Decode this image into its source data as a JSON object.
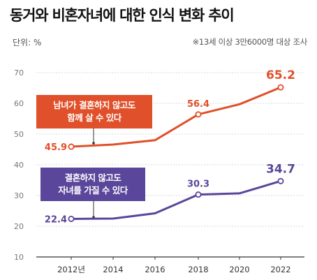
{
  "title": "동거와 비혼자녀에 대한 인식 변화 추이",
  "unit": "단위: %",
  "note": "※13세 이상 3만6000명 대상 조사",
  "colors": {
    "orange": "#e0502a",
    "purple": "#5a469a",
    "grid": "#cccccc",
    "axis": "#333333"
  },
  "annotations": {
    "orange_line1": "남녀가 결혼하지 않고도",
    "orange_line2": "함께 살 수 있다",
    "purple_line1": "결혼하지 않고도",
    "purple_line2": "자녀를 가질 수 있다"
  },
  "chart_data": {
    "type": "line",
    "title": "동거와 비혼자녀에 대한 인식 변화 추이",
    "xlabel": "",
    "ylabel": "",
    "x": [
      2012,
      2014,
      2016,
      2018,
      2020,
      2022
    ],
    "x_tick_labels": [
      "2012년",
      "2014",
      "2016",
      "2018",
      "2020",
      "2022"
    ],
    "ylim": [
      10,
      70
    ],
    "y_ticks": [
      10,
      20,
      30,
      40,
      50,
      60,
      70
    ],
    "grid": true,
    "series": [
      {
        "key": "cohabit",
        "color": "#e0502a",
        "values": [
          45.9,
          46.6,
          48.0,
          56.4,
          59.7,
          65.2
        ],
        "labels": [
          "45.9",
          "",
          "",
          "56.4",
          "",
          "65.2"
        ],
        "markers": [
          true,
          false,
          false,
          true,
          false,
          true
        ]
      },
      {
        "key": "children",
        "color": "#5a469a",
        "values": [
          22.4,
          22.5,
          24.2,
          30.3,
          30.7,
          34.7
        ],
        "labels": [
          "22.4",
          "",
          "",
          "30.3",
          "",
          "34.7"
        ],
        "markers": [
          true,
          false,
          false,
          true,
          false,
          true
        ]
      }
    ]
  }
}
